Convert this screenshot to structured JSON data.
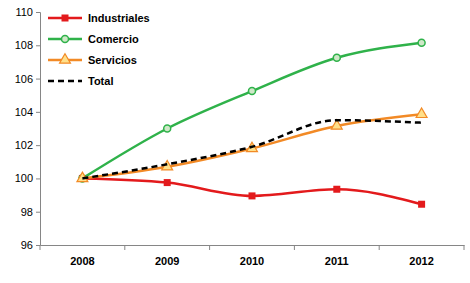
{
  "chart_data": {
    "type": "line",
    "categories": [
      "2008",
      "2009",
      "2010",
      "2011",
      "2012"
    ],
    "series": [
      {
        "name": "Industriales",
        "color": "#e31a1c",
        "marker": "square",
        "line_style": "solid",
        "values": [
          100,
          99.75,
          98.95,
          99.35,
          98.45
        ]
      },
      {
        "name": "Comercio",
        "color": "#2fb24a",
        "marker": "circle",
        "line_style": "solid",
        "values": [
          100,
          103,
          105.25,
          107.25,
          108.15
        ]
      },
      {
        "name": "Servicios",
        "color": "#f28a26",
        "marker": "triangle",
        "line_style": "solid",
        "values": [
          100,
          100.7,
          101.8,
          103.15,
          103.85
        ]
      },
      {
        "name": "Total",
        "color": "#000000",
        "marker": "none",
        "line_style": "dashed",
        "values": [
          100,
          100.85,
          101.9,
          103.5,
          103.35
        ]
      }
    ],
    "ylim": [
      96,
      110
    ],
    "yticks": [
      96,
      98,
      100,
      102,
      104,
      106,
      108,
      110
    ],
    "grid": false,
    "legend": "upper-left"
  }
}
